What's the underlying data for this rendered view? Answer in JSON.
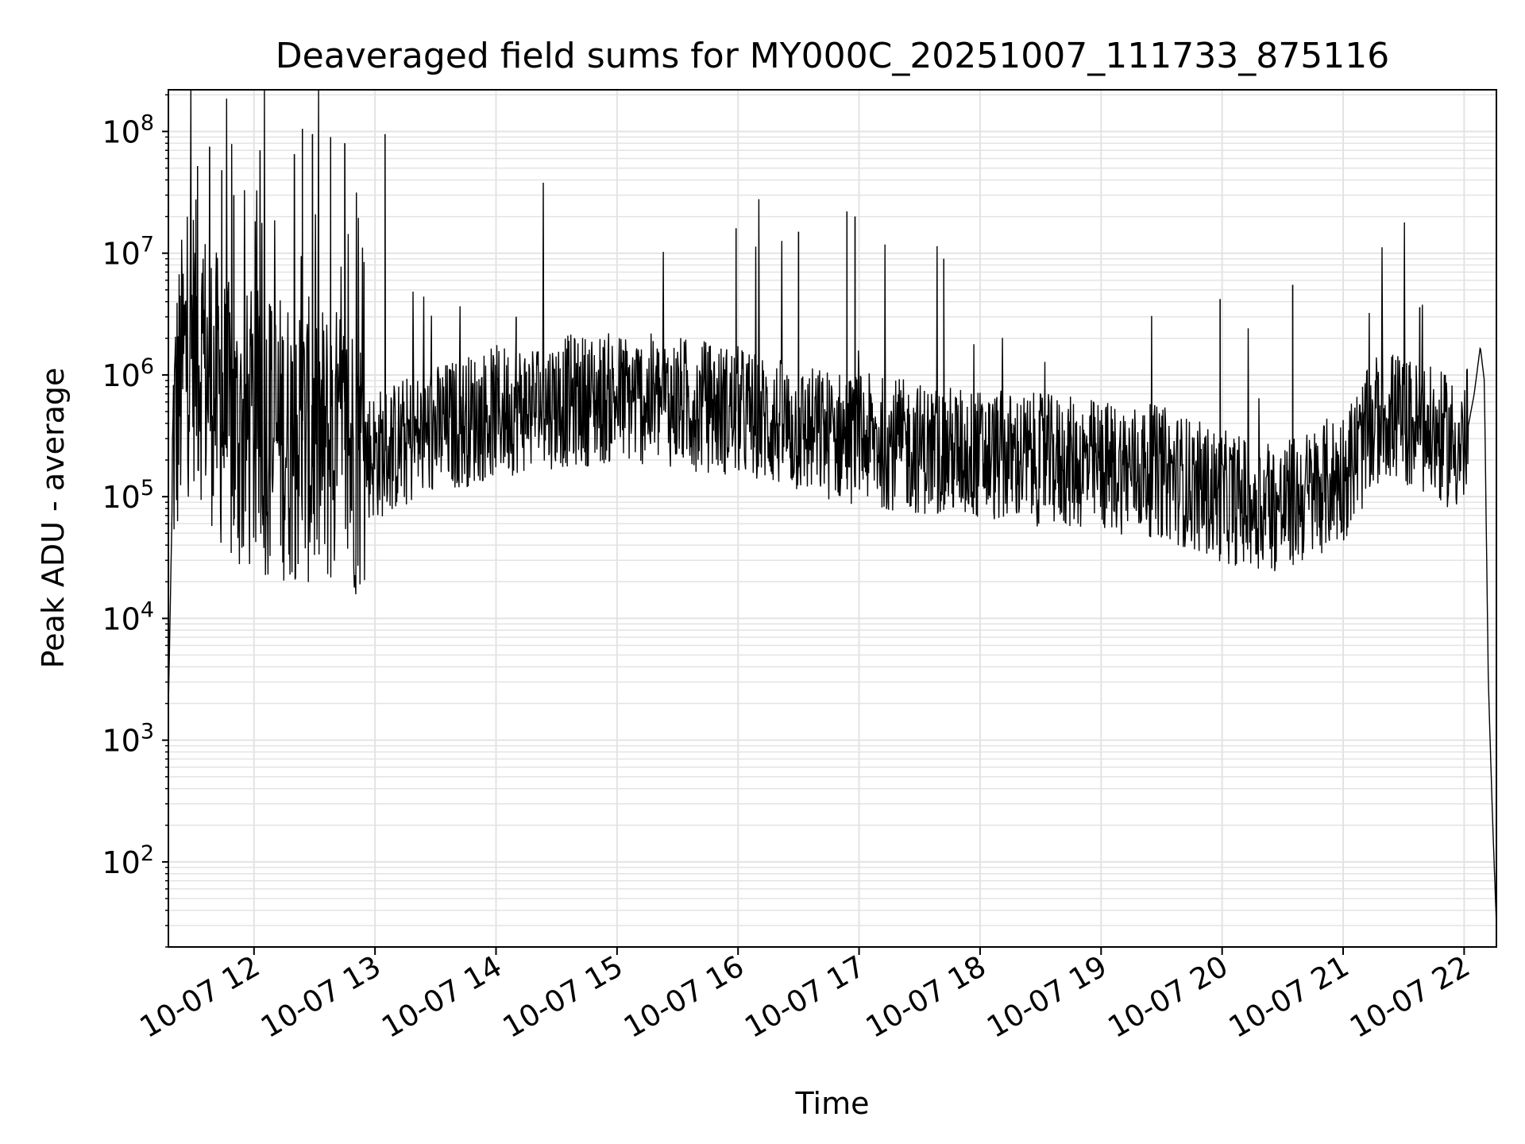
{
  "chart_data": {
    "type": "line",
    "title": "Deaveraged field sums for MY000C_20251007_111733_875116",
    "xlabel": "Time",
    "ylabel": "Peak ADU - average",
    "yscale": "log",
    "ylim": [
      20,
      220000000
    ],
    "xlim": [
      "2025-10-07 11:17:33",
      "2025-10-07 22:16:00"
    ],
    "grid": true,
    "grid_minor": true,
    "legend": "none",
    "line_color": "#000000",
    "grid_color": "#e3e3e3",
    "x_ticks": [
      {
        "time": "2025-10-07 12:00",
        "label": "10-07 12"
      },
      {
        "time": "2025-10-07 13:00",
        "label": "10-07 13"
      },
      {
        "time": "2025-10-07 14:00",
        "label": "10-07 14"
      },
      {
        "time": "2025-10-07 15:00",
        "label": "10-07 15"
      },
      {
        "time": "2025-10-07 16:00",
        "label": "10-07 16"
      },
      {
        "time": "2025-10-07 17:00",
        "label": "10-07 17"
      },
      {
        "time": "2025-10-07 18:00",
        "label": "10-07 18"
      },
      {
        "time": "2025-10-07 19:00",
        "label": "10-07 19"
      },
      {
        "time": "2025-10-07 20:00",
        "label": "10-07 20"
      },
      {
        "time": "2025-10-07 21:00",
        "label": "10-07 21"
      },
      {
        "time": "2025-10-07 22:00",
        "label": "10-07 22"
      }
    ],
    "y_ticks": [
      {
        "value": 100,
        "base": "10",
        "exp": "2"
      },
      {
        "value": 1000,
        "base": "10",
        "exp": "3"
      },
      {
        "value": 10000,
        "base": "10",
        "exp": "4"
      },
      {
        "value": 100000,
        "base": "10",
        "exp": "5"
      },
      {
        "value": 1000000,
        "base": "10",
        "exp": "6"
      },
      {
        "value": 10000000,
        "base": "10",
        "exp": "7"
      },
      {
        "value": 100000000,
        "base": "10",
        "exp": "8"
      }
    ],
    "series": [
      {
        "x": [
          "2025-10-07 11:17:33",
          "2025-10-07 11:20",
          "2025-10-07 11:25",
          "2025-10-07 11:30",
          "2025-10-07 11:40",
          "2025-10-07 11:50",
          "2025-10-07 12:00",
          "2025-10-07 12:20",
          "2025-10-07 12:40",
          "2025-10-07 13:00",
          "2025-10-07 13:30",
          "2025-10-07 14:00",
          "2025-10-07 14:30",
          "2025-10-07 15:00",
          "2025-10-07 15:30",
          "2025-10-07 16:00",
          "2025-10-07 16:30",
          "2025-10-07 17:00",
          "2025-10-07 17:30",
          "2025-10-07 18:00",
          "2025-10-07 18:30",
          "2025-10-07 19:00",
          "2025-10-07 19:30",
          "2025-10-07 20:00",
          "2025-10-07 20:30",
          "2025-10-07 21:00",
          "2025-10-07 21:20",
          "2025-10-07 21:40",
          "2025-10-07 22:00",
          "2025-10-07 22:05",
          "2025-10-07 22:08",
          "2025-10-07 22:10",
          "2025-10-07 22:12",
          "2025-10-07 22:14",
          "2025-10-07 22:16"
        ],
        "y": [
          1800,
          300000,
          1200000,
          2000000,
          800000,
          300000,
          350000,
          300000,
          250000,
          220000,
          350000,
          500000,
          600000,
          650000,
          600000,
          500000,
          350000,
          300000,
          250000,
          220000,
          200000,
          180000,
          160000,
          100000,
          80000,
          150000,
          500000,
          350000,
          250000,
          700000,
          1700000,
          900000,
          3000,
          250,
          30
        ]
      }
    ],
    "spikes": {
      "x": [
        "2025-10-07 11:32",
        "2025-10-07 11:38",
        "2025-10-07 11:44",
        "2025-10-07 11:50",
        "2025-10-07 12:03",
        "2025-10-07 12:20",
        "2025-10-07 12:24",
        "2025-10-07 12:29",
        "2025-10-07 12:38",
        "2025-10-07 12:45",
        "2025-10-07 13:05",
        "2025-10-07 14:10",
        "2025-10-07 15:59",
        "2025-10-07 16:30",
        "2025-10-07 16:54",
        "2025-10-07 16:58",
        "2025-10-07 17:42",
        "2025-10-07 19:59",
        "2025-10-07 20:35",
        "2025-10-07 21:38"
      ],
      "y": [
        52000000,
        75000000,
        48000000,
        30000000,
        70000000,
        65000000,
        105000000,
        95000000,
        90000000,
        80000000,
        95000000,
        3000000,
        16000000,
        15000000,
        22000000,
        20000000,
        9000000,
        4200000,
        5500000,
        3600000
      ]
    }
  }
}
